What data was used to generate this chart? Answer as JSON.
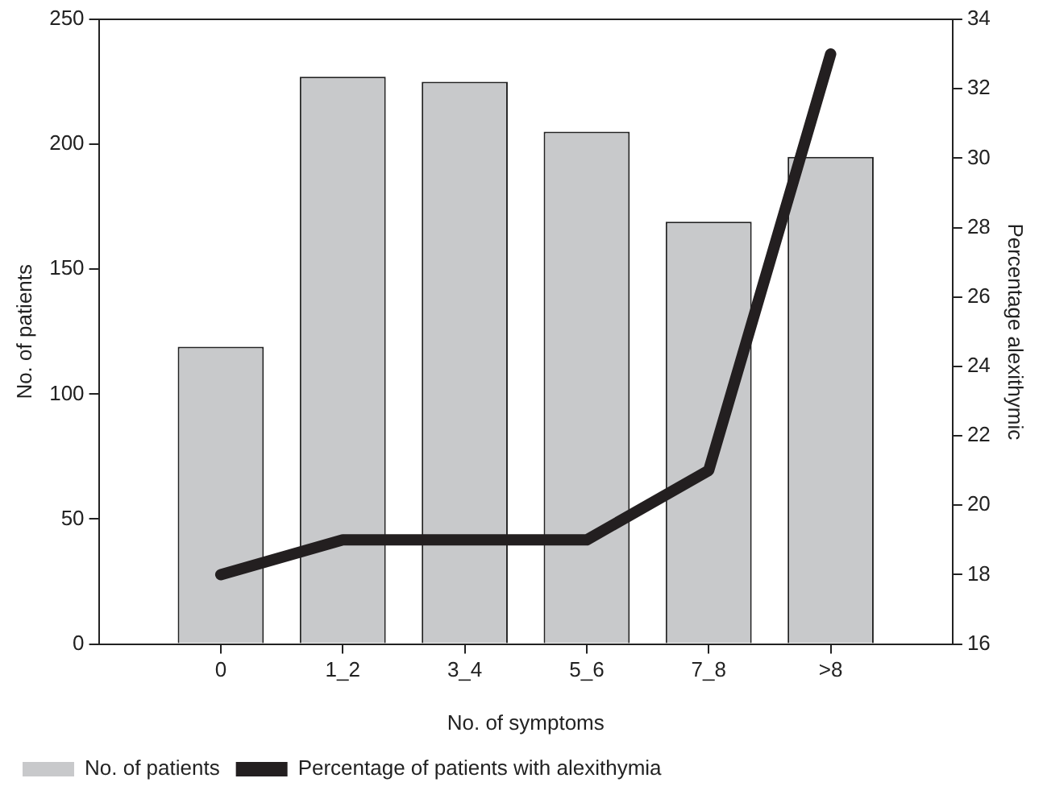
{
  "chart_data": {
    "type": "bar",
    "categories": [
      "0",
      "1_2",
      "3_4",
      "5_6",
      "7_8",
      ">8"
    ],
    "xlabel": "No. of symptoms",
    "ylabel": "No. of patients",
    "y2label": "Percentage alexithymic",
    "series": [
      {
        "name": "No. of patients",
        "color": "#c8c9cb",
        "values": [
          119,
          227,
          225,
          205,
          169,
          195
        ]
      },
      {
        "name": "Percentage of patients with alexithymia",
        "type": "line",
        "axis": "y2",
        "color": "#231f20",
        "values": [
          18,
          19,
          19,
          19,
          21,
          33
        ]
      }
    ],
    "ylim": [
      0,
      250
    ],
    "yticks": [
      0,
      50,
      100,
      150,
      200,
      250
    ],
    "y2lim": [
      16,
      34
    ],
    "y2ticks": [
      16,
      18,
      20,
      22,
      24,
      26,
      28,
      30,
      32,
      34
    ],
    "grid": false,
    "legend": "bottom",
    "marker": "none",
    "line_style": "solid"
  }
}
